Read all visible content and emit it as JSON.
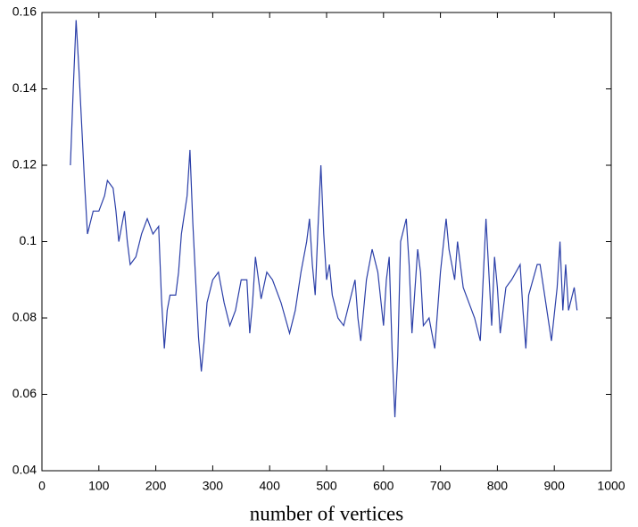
{
  "chart_data": {
    "type": "line",
    "xlabel": "number of vertices",
    "x": [
      50,
      55,
      60,
      65,
      70,
      75,
      80,
      85,
      90,
      100,
      110,
      115,
      125,
      130,
      135,
      140,
      145,
      150,
      155,
      165,
      175,
      185,
      195,
      205,
      210,
      215,
      220,
      225,
      235,
      240,
      245,
      255,
      260,
      265,
      270,
      275,
      280,
      285,
      290,
      300,
      310,
      320,
      330,
      340,
      350,
      360,
      365,
      370,
      375,
      385,
      395,
      405,
      420,
      435,
      445,
      455,
      465,
      470,
      475,
      480,
      485,
      490,
      495,
      500,
      505,
      510,
      520,
      530,
      540,
      550,
      555,
      560,
      570,
      580,
      590,
      600,
      605,
      610,
      615,
      620,
      625,
      630,
      640,
      645,
      650,
      660,
      665,
      670,
      680,
      690,
      700,
      710,
      715,
      725,
      730,
      740,
      750,
      760,
      770,
      780,
      790,
      795,
      800,
      805,
      815,
      825,
      840,
      845,
      850,
      855,
      870,
      875,
      885,
      895,
      905,
      910,
      915,
      920,
      925,
      935,
      940
    ],
    "series": [
      {
        "color": "#2b3fa8",
        "values": [
          0.12,
          0.14,
          0.158,
          0.145,
          0.13,
          0.115,
          0.102,
          0.105,
          0.108,
          0.108,
          0.112,
          0.116,
          0.114,
          0.108,
          0.1,
          0.104,
          0.108,
          0.1,
          0.094,
          0.096,
          0.102,
          0.106,
          0.102,
          0.104,
          0.085,
          0.072,
          0.082,
          0.086,
          0.086,
          0.092,
          0.102,
          0.112,
          0.124,
          0.105,
          0.09,
          0.075,
          0.066,
          0.074,
          0.084,
          0.09,
          0.092,
          0.084,
          0.078,
          0.082,
          0.09,
          0.09,
          0.076,
          0.084,
          0.096,
          0.085,
          0.092,
          0.09,
          0.084,
          0.076,
          0.082,
          0.092,
          0.1,
          0.106,
          0.094,
          0.086,
          0.104,
          0.12,
          0.102,
          0.09,
          0.094,
          0.086,
          0.08,
          0.078,
          0.084,
          0.09,
          0.08,
          0.074,
          0.09,
          0.098,
          0.092,
          0.078,
          0.09,
          0.096,
          0.072,
          0.054,
          0.07,
          0.1,
          0.106,
          0.094,
          0.076,
          0.098,
          0.092,
          0.078,
          0.08,
          0.072,
          0.092,
          0.106,
          0.098,
          0.09,
          0.1,
          0.088,
          0.084,
          0.08,
          0.074,
          0.106,
          0.078,
          0.096,
          0.088,
          0.076,
          0.088,
          0.09,
          0.094,
          0.082,
          0.072,
          0.086,
          0.094,
          0.094,
          0.084,
          0.074,
          0.088,
          0.1,
          0.082,
          0.094,
          0.082,
          0.088,
          0.082
        ]
      }
    ],
    "xlim": [
      0,
      1000
    ],
    "xticks": [
      0,
      100,
      200,
      300,
      400,
      500,
      600,
      700,
      800,
      900,
      1000
    ],
    "ylim": [
      0.04,
      0.16
    ],
    "yticks": [
      0.04,
      0.06,
      0.08,
      0.1,
      0.12,
      0.14,
      0.16
    ]
  }
}
